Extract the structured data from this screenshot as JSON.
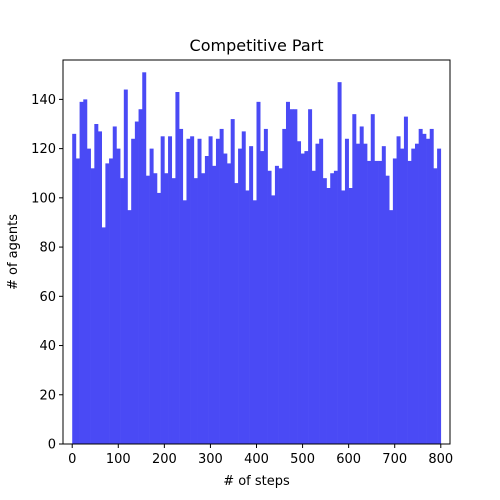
{
  "chart_data": {
    "type": "bar",
    "title": "Competitive Part",
    "xlabel": "# of steps",
    "ylabel": "# of agents",
    "xlim": [
      -20,
      820
    ],
    "ylim": [
      0,
      156
    ],
    "x_ticks": [
      0,
      100,
      200,
      300,
      400,
      500,
      600,
      700,
      800
    ],
    "y_ticks": [
      0,
      20,
      40,
      60,
      80,
      100,
      120,
      140
    ],
    "grid": false,
    "bin_start": 0,
    "bin_width": 8,
    "color": "#4a4af5",
    "values": [
      126,
      116,
      139,
      140,
      120,
      112,
      130,
      127,
      88,
      114,
      116,
      129,
      120,
      108,
      144,
      95,
      124,
      131,
      136,
      151,
      109,
      120,
      110,
      102,
      125,
      110,
      125,
      108,
      143,
      128,
      99,
      124,
      125,
      108,
      124,
      110,
      117,
      125,
      113,
      124,
      128,
      118,
      114,
      132,
      106,
      120,
      127,
      103,
      121,
      99,
      139,
      119,
      128,
      111,
      101,
      113,
      112,
      128,
      139,
      136,
      136,
      123,
      118,
      119,
      136,
      111,
      122,
      124,
      108,
      104,
      110,
      111,
      147,
      103,
      124,
      104,
      134,
      122,
      129,
      122,
      115,
      134,
      115,
      115,
      121,
      109,
      95,
      116,
      125,
      120,
      133,
      115,
      120,
      122,
      128,
      126,
      124,
      128,
      112,
      120
    ]
  }
}
